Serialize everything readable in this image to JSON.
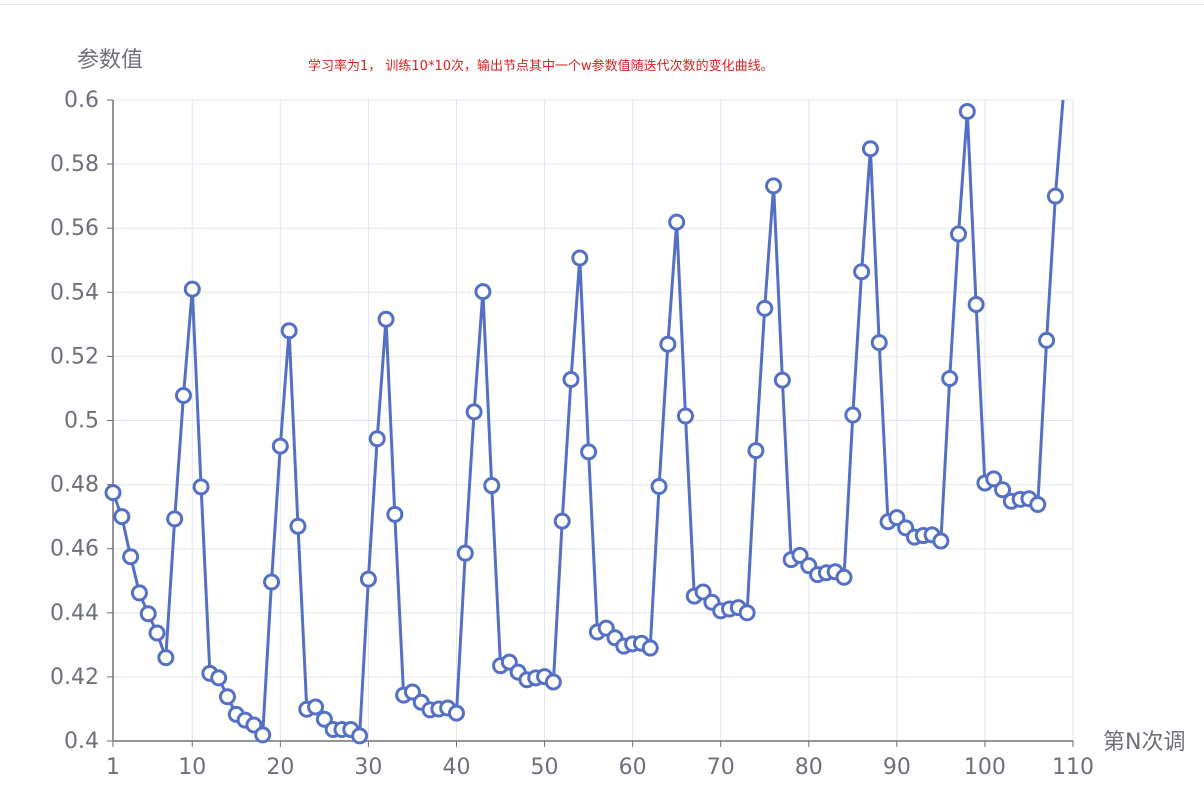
{
  "chart_data": {
    "type": "line",
    "title": "",
    "subtitle": "学习率为1， 训练10*10次，输出节点其中一个w参数值随迭代次数的变化曲线。",
    "xlabel": "第N次调",
    "ylabel": "参数值",
    "xlim": [
      1,
      110
    ],
    "ylim": [
      0.4,
      0.6
    ],
    "x_ticks": [
      "1",
      "10",
      "20",
      "30",
      "40",
      "50",
      "60",
      "70",
      "80",
      "90",
      "100",
      "110"
    ],
    "y_ticks": [
      "0.4",
      "0.42",
      "0.44",
      "0.46",
      "0.48",
      "0.5",
      "0.52",
      "0.54",
      "0.56",
      "0.58",
      "0.6"
    ],
    "grid": true,
    "line_color": "#5470c6",
    "marker_fill": "#ffffff",
    "series": [
      {
        "x": [
          1,
          2,
          3,
          4,
          5,
          6,
          7,
          8,
          9,
          10,
          11,
          12,
          13,
          14,
          15,
          16,
          17,
          18,
          19,
          20,
          21,
          22,
          23,
          24,
          25,
          26,
          27,
          28,
          29,
          30,
          31,
          32,
          33,
          34,
          35,
          36,
          37,
          38,
          39,
          40,
          41,
          42,
          43,
          44,
          45,
          46,
          47,
          48,
          49,
          50,
          51,
          52,
          53,
          54,
          55,
          56,
          57,
          58,
          59,
          60,
          61,
          62,
          63,
          64,
          65,
          66,
          67,
          68,
          69,
          70,
          71,
          72,
          73,
          74,
          75,
          76,
          77,
          78,
          79,
          80,
          81,
          82,
          83,
          84,
          85,
          86,
          87,
          88,
          89,
          90,
          91,
          92,
          93,
          94,
          95,
          96,
          97,
          98,
          99,
          100,
          101,
          102,
          103,
          104,
          105,
          106,
          107,
          108
        ],
        "values": [
          0.4775,
          0.47,
          0.4575,
          0.4462,
          0.4397,
          0.4337,
          0.426,
          0.4693,
          0.5078,
          0.541,
          0.4793,
          0.4211,
          0.4197,
          0.4138,
          0.4083,
          0.4065,
          0.405,
          0.4019,
          0.4496,
          0.492,
          0.528,
          0.467,
          0.4099,
          0.4106,
          0.4068,
          0.4036,
          0.4036,
          0.4036,
          0.4016,
          0.4505,
          0.4943,
          0.5316,
          0.4707,
          0.4143,
          0.4153,
          0.4121,
          0.4097,
          0.41,
          0.4103,
          0.4087,
          0.4586,
          0.5027,
          0.5402,
          0.4797,
          0.4235,
          0.4246,
          0.4215,
          0.4191,
          0.4197,
          0.4201,
          0.4184,
          0.4686,
          0.5128,
          0.5507,
          0.4902,
          0.434,
          0.4352,
          0.4322,
          0.4296,
          0.4303,
          0.4305,
          0.429,
          0.4794,
          0.5238,
          0.5619,
          0.5014,
          0.4452,
          0.4465,
          0.4433,
          0.4406,
          0.4412,
          0.4416,
          0.44,
          0.4906,
          0.535,
          0.5732,
          0.5126,
          0.4566,
          0.4579,
          0.4547,
          0.4519,
          0.4525,
          0.4528,
          0.4511,
          0.5017,
          0.5464,
          0.5848,
          0.5243,
          0.4684,
          0.4697,
          0.4665,
          0.4636,
          0.4641,
          0.4643,
          0.4624,
          0.5131,
          0.5582,
          0.5964,
          0.5362,
          0.4805,
          0.4818,
          0.4784,
          0.4748,
          0.4754,
          0.4756,
          0.4738,
          0.525,
          0.57
        ]
      }
    ]
  }
}
